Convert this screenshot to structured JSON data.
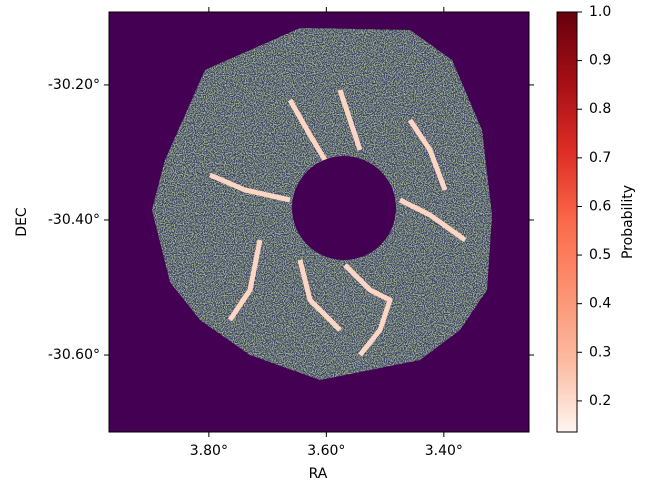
{
  "chart_data": {
    "type": "image",
    "x_label": "RA",
    "y_label": "DEC",
    "colorbar_label": "Probability",
    "xlim": [
      3.97,
      3.255
    ],
    "ylim": [
      -30.714,
      -30.092
    ],
    "xticks": [
      {
        "value": 3.8,
        "label": "3.80°"
      },
      {
        "value": 3.6,
        "label": "3.60°"
      },
      {
        "value": 3.4,
        "label": "3.40°"
      }
    ],
    "yticks": [
      {
        "value": -30.2,
        "label": "-30.20°"
      },
      {
        "value": -30.4,
        "label": "-30.40°"
      },
      {
        "value": -30.6,
        "label": "-30.60°"
      }
    ],
    "clim": [
      0.136,
      1.0
    ],
    "cticks": [
      0.2,
      0.3,
      0.4,
      0.5,
      0.6,
      0.7,
      0.8,
      0.9,
      {
        "value": 1.0,
        "label": "1.0"
      }
    ],
    "colormap": [
      "#fff5f0",
      "#fcbba1",
      "#fc9272",
      "#fb6a4a",
      "#de2d26",
      "#a50f15",
      "#67000d"
    ],
    "background_color": "#440154"
  }
}
